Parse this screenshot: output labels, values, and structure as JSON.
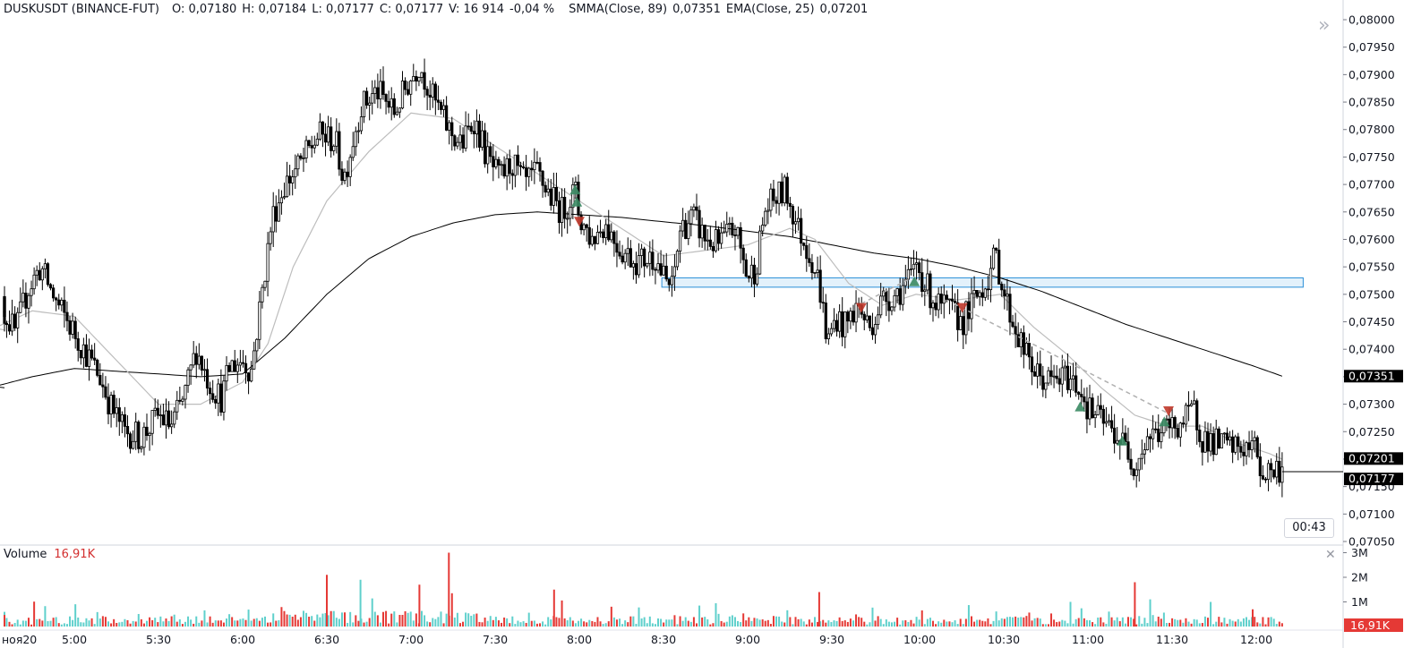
{
  "header": {
    "symbol": "DUSKUSDT (BINANCE-FUT)",
    "open": "O: 0,07180",
    "high": "H: 0,07184",
    "low": "L: 0,07177",
    "close": "C: 0,07177",
    "volume": "V: 16 914",
    "change": "-0,04 %",
    "smma": "SMMA(Close, 89)",
    "smma_value": "0,07351",
    "ema": "EMA(Close, 25)",
    "ema_value": "0,07201"
  },
  "volume_pane": {
    "title": "Volume",
    "value": "16,91K",
    "badge": "16,91K"
  },
  "countdown": "00:43",
  "colors": {
    "candle": "#000000",
    "smma": "#000000",
    "ema": "#bdbdbd",
    "zone_fill": "#deeefa",
    "zone_border": "#2a8fd8",
    "buy": "#3a8a63",
    "sell": "#c0392b",
    "vol_up": "#5fd0cc",
    "vol_down": "#e53935"
  },
  "chart_data": {
    "type": "candlestick",
    "price_axis_ticks": [
      "0,08000",
      "0,07950",
      "0,07900",
      "0,07850",
      "0,07800",
      "0,07750",
      "0,07700",
      "0,07650",
      "0,07600",
      "0,07550",
      "0,07500",
      "0,07450",
      "0,07400",
      "0,07350",
      "0,07300",
      "0,07250",
      "0,07200",
      "0,07150",
      "0,07100",
      "0,07050"
    ],
    "ylim": [
      0.07045,
      0.08008
    ],
    "price_badges": [
      {
        "label": "0,07351",
        "value": 0.07351,
        "style": "smma"
      },
      {
        "label": "0,07201",
        "value": 0.07201,
        "style": "ema"
      },
      {
        "label": "0,07177",
        "value": 0.07177,
        "style": "last"
      }
    ],
    "time_labels": [
      {
        "label": "ноя20",
        "t": 0.3
      },
      {
        "label": "5:00",
        "t": 1
      },
      {
        "label": "5:30",
        "t": 2
      },
      {
        "label": "6:00",
        "t": 3
      },
      {
        "label": "6:30",
        "t": 4
      },
      {
        "label": "7:00",
        "t": 5
      },
      {
        "label": "7:30",
        "t": 6
      },
      {
        "label": "8:00",
        "t": 7
      },
      {
        "label": "8:30",
        "t": 8
      },
      {
        "label": "9:00",
        "t": 9
      },
      {
        "label": "9:30",
        "t": 10
      },
      {
        "label": "10:00",
        "t": 11
      },
      {
        "label": "10:30",
        "t": 12
      },
      {
        "label": "11:00",
        "t": 13
      },
      {
        "label": "11:30",
        "t": 14
      },
      {
        "label": "12:00",
        "t": 15
      }
    ],
    "close_path": [
      [
        0.0,
        0.0749
      ],
      [
        0.15,
        0.0747
      ],
      [
        0.3,
        0.0743
      ],
      [
        0.45,
        0.0751
      ],
      [
        0.6,
        0.0755
      ],
      [
        0.8,
        0.0748
      ],
      [
        1.0,
        0.0743
      ],
      [
        1.15,
        0.0739
      ],
      [
        1.3,
        0.0735
      ],
      [
        1.45,
        0.0729
      ],
      [
        1.6,
        0.0725
      ],
      [
        1.8,
        0.0724
      ],
      [
        2.0,
        0.0728
      ],
      [
        2.15,
        0.0726
      ],
      [
        2.3,
        0.0731
      ],
      [
        2.45,
        0.074
      ],
      [
        2.6,
        0.0734
      ],
      [
        2.75,
        0.0731
      ],
      [
        2.85,
        0.0737
      ],
      [
        3.0,
        0.0738
      ],
      [
        3.1,
        0.0736
      ],
      [
        3.2,
        0.0747
      ],
      [
        3.35,
        0.0764
      ],
      [
        3.5,
        0.077
      ],
      [
        3.7,
        0.0774
      ],
      [
        3.9,
        0.0779
      ],
      [
        4.1,
        0.0778
      ],
      [
        4.2,
        0.0771
      ],
      [
        4.4,
        0.0784
      ],
      [
        4.6,
        0.0787
      ],
      [
        4.8,
        0.0783
      ],
      [
        4.95,
        0.0788
      ],
      [
        5.1,
        0.0792
      ],
      [
        5.25,
        0.0786
      ],
      [
        5.45,
        0.078
      ],
      [
        5.6,
        0.0777
      ],
      [
        5.75,
        0.0782
      ],
      [
        5.9,
        0.0775
      ],
      [
        6.05,
        0.0771
      ],
      [
        6.2,
        0.0774
      ],
      [
        6.35,
        0.077
      ],
      [
        6.5,
        0.0772
      ],
      [
        6.65,
        0.0768
      ],
      [
        6.8,
        0.0765
      ],
      [
        6.95,
        0.0769
      ],
      [
        7.0,
        0.0764
      ],
      [
        7.15,
        0.076
      ],
      [
        7.3,
        0.0763
      ],
      [
        7.5,
        0.0758
      ],
      [
        7.7,
        0.0756
      ],
      [
        7.9,
        0.0757
      ],
      [
        8.0,
        0.0753
      ],
      [
        8.1,
        0.0751
      ],
      [
        8.2,
        0.0762
      ],
      [
        8.35,
        0.0764
      ],
      [
        8.5,
        0.076
      ],
      [
        8.65,
        0.0759
      ],
      [
        8.85,
        0.0762
      ],
      [
        9.0,
        0.0753
      ],
      [
        9.1,
        0.0755
      ],
      [
        9.2,
        0.0765
      ],
      [
        9.3,
        0.0767
      ],
      [
        9.45,
        0.0769
      ],
      [
        9.6,
        0.0762
      ],
      [
        9.75,
        0.0757
      ],
      [
        9.85,
        0.0752
      ],
      [
        9.95,
        0.0741
      ],
      [
        10.05,
        0.0746
      ],
      [
        10.15,
        0.0744
      ],
      [
        10.3,
        0.0748
      ],
      [
        10.45,
        0.0744
      ],
      [
        10.6,
        0.0749
      ],
      [
        10.75,
        0.075
      ],
      [
        10.95,
        0.0753
      ],
      [
        11.0,
        0.0756
      ],
      [
        11.1,
        0.0752
      ],
      [
        11.25,
        0.0748
      ],
      [
        11.4,
        0.0747
      ],
      [
        11.55,
        0.0745
      ],
      [
        11.7,
        0.0749
      ],
      [
        11.85,
        0.0753
      ],
      [
        11.95,
        0.0757
      ],
      [
        12.05,
        0.075
      ],
      [
        12.15,
        0.0745
      ],
      [
        12.3,
        0.0739
      ],
      [
        12.45,
        0.0735
      ],
      [
        12.6,
        0.0734
      ],
      [
        12.8,
        0.0735
      ],
      [
        12.95,
        0.0733
      ],
      [
        13.05,
        0.0729
      ],
      [
        13.2,
        0.0727
      ],
      [
        13.35,
        0.0725
      ],
      [
        13.5,
        0.0722
      ],
      [
        13.6,
        0.0719
      ],
      [
        13.75,
        0.0724
      ],
      [
        13.9,
        0.0725
      ],
      [
        14.05,
        0.0726
      ],
      [
        14.2,
        0.0727
      ],
      [
        14.3,
        0.0729
      ],
      [
        14.4,
        0.0724
      ],
      [
        14.55,
        0.0723
      ],
      [
        14.75,
        0.0722
      ],
      [
        14.95,
        0.0722
      ],
      [
        15.05,
        0.0722
      ],
      [
        15.1,
        0.0717
      ],
      [
        15.2,
        0.0718
      ],
      [
        15.35,
        0.0718
      ]
    ],
    "ema_path": [
      [
        0.0,
        0.07435
      ],
      [
        0.5,
        0.0747
      ],
      [
        1.0,
        0.0746
      ],
      [
        1.5,
        0.0738
      ],
      [
        2.0,
        0.073
      ],
      [
        2.5,
        0.073
      ],
      [
        3.0,
        0.0734
      ],
      [
        3.3,
        0.0741
      ],
      [
        3.6,
        0.0755
      ],
      [
        4.0,
        0.0767
      ],
      [
        4.5,
        0.0776
      ],
      [
        5.0,
        0.0783
      ],
      [
        5.5,
        0.0782
      ],
      [
        6.0,
        0.0777
      ],
      [
        6.5,
        0.0772
      ],
      [
        7.0,
        0.0767
      ],
      [
        7.5,
        0.0762
      ],
      [
        8.0,
        0.0757
      ],
      [
        8.5,
        0.0758
      ],
      [
        9.0,
        0.0759
      ],
      [
        9.5,
        0.0762
      ],
      [
        9.8,
        0.076
      ],
      [
        10.2,
        0.0752
      ],
      [
        10.6,
        0.0748
      ],
      [
        11.0,
        0.075
      ],
      [
        11.5,
        0.0749
      ],
      [
        12.0,
        0.075
      ],
      [
        12.4,
        0.0744
      ],
      [
        12.8,
        0.0739
      ],
      [
        13.2,
        0.0733
      ],
      [
        13.6,
        0.0728
      ],
      [
        14.0,
        0.0726
      ],
      [
        14.4,
        0.0726
      ],
      [
        14.8,
        0.0723
      ],
      [
        15.2,
        0.0721
      ],
      [
        15.35,
        0.072
      ]
    ],
    "smma_path": [
      [
        0.0,
        0.0733
      ],
      [
        0.5,
        0.0735
      ],
      [
        1.0,
        0.07365
      ],
      [
        1.5,
        0.0736
      ],
      [
        2.0,
        0.07355
      ],
      [
        2.5,
        0.0735
      ],
      [
        3.0,
        0.07355
      ],
      [
        3.5,
        0.0742
      ],
      [
        4.0,
        0.075
      ],
      [
        4.5,
        0.07565
      ],
      [
        5.0,
        0.07605
      ],
      [
        5.5,
        0.0763
      ],
      [
        6.0,
        0.07645
      ],
      [
        6.5,
        0.0765
      ],
      [
        7.0,
        0.07645
      ],
      [
        7.5,
        0.0764
      ],
      [
        8.0,
        0.07632
      ],
      [
        8.5,
        0.07625
      ],
      [
        9.0,
        0.07615
      ],
      [
        9.5,
        0.07605
      ],
      [
        10.0,
        0.0759
      ],
      [
        10.5,
        0.07575
      ],
      [
        11.0,
        0.07565
      ],
      [
        11.5,
        0.0755
      ],
      [
        12.0,
        0.0753
      ],
      [
        12.5,
        0.07505
      ],
      [
        13.0,
        0.07475
      ],
      [
        13.5,
        0.07445
      ],
      [
        14.0,
        0.0742
      ],
      [
        14.5,
        0.07395
      ],
      [
        15.0,
        0.0737
      ],
      [
        15.35,
        0.07351
      ]
    ],
    "zone": {
      "t_start": 7.98,
      "t_end": 15.6,
      "price_top": 0.0753,
      "price_bottom": 0.07513
    },
    "trend_lines": [
      {
        "from": [
          10.35,
          0.07483
        ],
        "to": [
          10.95,
          0.0753
        ]
      },
      {
        "from": [
          11.45,
          0.07483
        ],
        "to": [
          14.0,
          0.07283
        ]
      }
    ],
    "markers": [
      {
        "type": "buy",
        "t": 6.95,
        "price": 0.0769
      },
      {
        "type": "buy",
        "t": 6.97,
        "price": 0.07668
      },
      {
        "type": "sell",
        "t": 7.0,
        "price": 0.07633
      },
      {
        "type": "sell",
        "t": 10.35,
        "price": 0.07476
      },
      {
        "type": "buy",
        "t": 10.98,
        "price": 0.07523
      },
      {
        "type": "sell",
        "t": 11.55,
        "price": 0.07476
      },
      {
        "type": "buy",
        "t": 12.95,
        "price": 0.07295
      },
      {
        "type": "buy",
        "t": 13.45,
        "price": 0.07233
      },
      {
        "type": "buy",
        "t": 13.95,
        "price": 0.07268
      },
      {
        "type": "sell",
        "t": 14.0,
        "price": 0.07288
      }
    ],
    "volume_axis_ticks": [
      "3M",
      "2M",
      "1M"
    ],
    "volume_spikes": [
      {
        "t": 5.45,
        "value": 3.0,
        "down": true
      },
      {
        "t": 4.0,
        "value": 2.1,
        "down": true
      },
      {
        "t": 4.4,
        "value": 1.9,
        "down": false
      },
      {
        "t": 5.1,
        "value": 1.7,
        "down": true
      },
      {
        "t": 6.7,
        "value": 1.5,
        "down": true
      },
      {
        "t": 9.85,
        "value": 1.4,
        "down": true
      },
      {
        "t": 13.6,
        "value": 1.8,
        "down": true
      },
      {
        "t": 15.0,
        "value": 0.7,
        "down": true
      }
    ]
  }
}
